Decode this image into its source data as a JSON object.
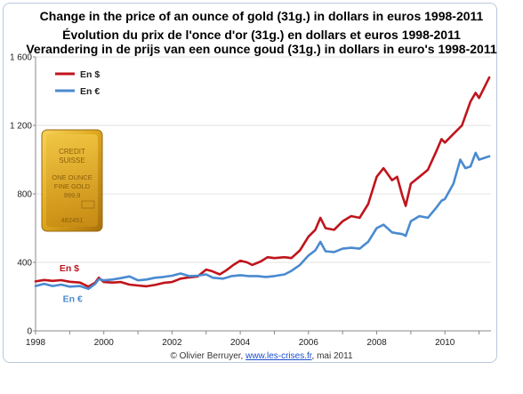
{
  "titles": [
    "Change in the price of an ounce of gold (31g.) in dollars in euros 1998-2011",
    "Évolution du prix de l'once d'or (31g.) en dollars et euros 1998-2011",
    "Verandering in de prijs van een ounce goud (31g.) in dollars in euro's 1998-2011"
  ],
  "credit": {
    "prefix": "© Olivier Berruyer, ",
    "site": "www.les-crises.fr",
    "suffix": ",  mai 2011"
  },
  "bar_text": {
    "line1": "CREDIT",
    "line2": "SUISSE",
    "line3": "ONE OUNCE",
    "line4": "FINE GOLD",
    "line5": "999,9",
    "line6": "482451"
  },
  "colors": {
    "usd": "#c0141c",
    "eur": "#4a8ad0",
    "frame": "#b9c9dd",
    "gold": "#d9a520"
  },
  "chart_data": {
    "type": "line",
    "title": "Change in the price of an ounce of gold (31g.) in dollars in euros 1998-2011",
    "xlabel": "",
    "ylabel": "",
    "xlim": [
      1998,
      2011.35
    ],
    "ylim": [
      0,
      1600
    ],
    "x_ticks": [
      1998,
      2000,
      2002,
      2004,
      2006,
      2008,
      2010
    ],
    "y_ticks": [
      0,
      400,
      800,
      1200,
      1600
    ],
    "y_tick_labels": [
      "0",
      "400",
      "800",
      "1 200",
      "1 600"
    ],
    "grid": true,
    "legend": "top-left",
    "annotations": [
      {
        "text": "En $",
        "x": 1998.7,
        "y": 348,
        "series": 0
      },
      {
        "text": "En €",
        "x": 1998.8,
        "y": 170,
        "series": 1
      }
    ],
    "series": [
      {
        "name": "En $",
        "points": [
          [
            1998.0,
            289
          ],
          [
            1998.25,
            297
          ],
          [
            1998.5,
            292
          ],
          [
            1998.75,
            296
          ],
          [
            1999.0,
            287
          ],
          [
            1999.3,
            282
          ],
          [
            1999.55,
            258
          ],
          [
            1999.75,
            282
          ],
          [
            1999.85,
            310
          ],
          [
            2000.0,
            285
          ],
          [
            2000.25,
            282
          ],
          [
            2000.5,
            285
          ],
          [
            2000.75,
            270
          ],
          [
            2001.0,
            265
          ],
          [
            2001.25,
            260
          ],
          [
            2001.5,
            268
          ],
          [
            2001.75,
            280
          ],
          [
            2002.0,
            285
          ],
          [
            2002.25,
            305
          ],
          [
            2002.5,
            312
          ],
          [
            2002.75,
            318
          ],
          [
            2003.0,
            358
          ],
          [
            2003.15,
            350
          ],
          [
            2003.4,
            330
          ],
          [
            2003.6,
            355
          ],
          [
            2003.8,
            385
          ],
          [
            2004.0,
            410
          ],
          [
            2004.2,
            400
          ],
          [
            2004.35,
            385
          ],
          [
            2004.6,
            405
          ],
          [
            2004.8,
            430
          ],
          [
            2005.0,
            425
          ],
          [
            2005.3,
            430
          ],
          [
            2005.5,
            425
          ],
          [
            2005.75,
            470
          ],
          [
            2006.0,
            550
          ],
          [
            2006.2,
            590
          ],
          [
            2006.35,
            660
          ],
          [
            2006.5,
            600
          ],
          [
            2006.75,
            590
          ],
          [
            2007.0,
            640
          ],
          [
            2007.25,
            670
          ],
          [
            2007.5,
            660
          ],
          [
            2007.75,
            740
          ],
          [
            2008.0,
            900
          ],
          [
            2008.2,
            950
          ],
          [
            2008.45,
            880
          ],
          [
            2008.6,
            900
          ],
          [
            2008.75,
            790
          ],
          [
            2008.85,
            730
          ],
          [
            2009.0,
            860
          ],
          [
            2009.25,
            900
          ],
          [
            2009.5,
            940
          ],
          [
            2009.75,
            1050
          ],
          [
            2009.9,
            1120
          ],
          [
            2010.0,
            1100
          ],
          [
            2010.25,
            1150
          ],
          [
            2010.5,
            1200
          ],
          [
            2010.75,
            1340
          ],
          [
            2010.9,
            1390
          ],
          [
            2011.0,
            1360
          ],
          [
            2011.15,
            1420
          ],
          [
            2011.3,
            1480
          ]
        ]
      },
      {
        "name": "En €",
        "points": [
          [
            1998.0,
            262
          ],
          [
            1998.25,
            275
          ],
          [
            1998.5,
            262
          ],
          [
            1998.75,
            270
          ],
          [
            1999.0,
            258
          ],
          [
            1999.3,
            262
          ],
          [
            1999.55,
            245
          ],
          [
            1999.75,
            275
          ],
          [
            1999.85,
            302
          ],
          [
            2000.0,
            295
          ],
          [
            2000.25,
            300
          ],
          [
            2000.5,
            308
          ],
          [
            2000.75,
            318
          ],
          [
            2001.0,
            295
          ],
          [
            2001.25,
            300
          ],
          [
            2001.5,
            310
          ],
          [
            2001.75,
            315
          ],
          [
            2002.0,
            322
          ],
          [
            2002.25,
            335
          ],
          [
            2002.5,
            320
          ],
          [
            2002.75,
            322
          ],
          [
            2003.0,
            330
          ],
          [
            2003.2,
            310
          ],
          [
            2003.5,
            305
          ],
          [
            2003.75,
            320
          ],
          [
            2004.0,
            325
          ],
          [
            2004.25,
            320
          ],
          [
            2004.5,
            320
          ],
          [
            2004.75,
            315
          ],
          [
            2005.0,
            320
          ],
          [
            2005.3,
            330
          ],
          [
            2005.5,
            350
          ],
          [
            2005.75,
            385
          ],
          [
            2006.0,
            440
          ],
          [
            2006.2,
            470
          ],
          [
            2006.35,
            520
          ],
          [
            2006.5,
            465
          ],
          [
            2006.75,
            460
          ],
          [
            2007.0,
            480
          ],
          [
            2007.25,
            485
          ],
          [
            2007.5,
            480
          ],
          [
            2007.75,
            520
          ],
          [
            2008.0,
            600
          ],
          [
            2008.2,
            620
          ],
          [
            2008.45,
            575
          ],
          [
            2008.6,
            570
          ],
          [
            2008.75,
            565
          ],
          [
            2008.85,
            555
          ],
          [
            2009.0,
            640
          ],
          [
            2009.25,
            670
          ],
          [
            2009.5,
            660
          ],
          [
            2009.75,
            720
          ],
          [
            2009.9,
            760
          ],
          [
            2010.0,
            770
          ],
          [
            2010.25,
            860
          ],
          [
            2010.45,
            1000
          ],
          [
            2010.6,
            950
          ],
          [
            2010.75,
            960
          ],
          [
            2010.9,
            1040
          ],
          [
            2011.0,
            1000
          ],
          [
            2011.15,
            1010
          ],
          [
            2011.3,
            1020
          ]
        ]
      }
    ]
  }
}
